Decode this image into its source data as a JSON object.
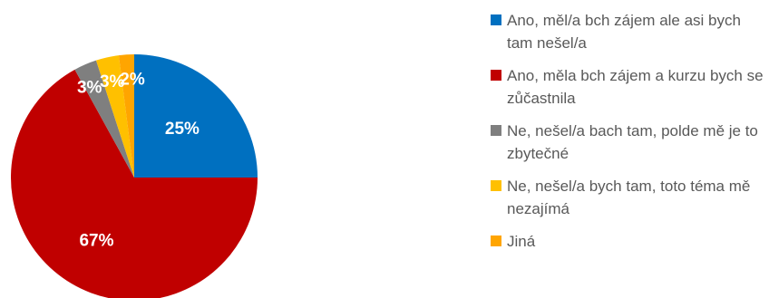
{
  "chart_data": {
    "type": "pie",
    "title": "",
    "slices": [
      {
        "label": "Ano, měl/a bch zájem ale asi bych tam nešel/a",
        "value": 25,
        "display": "25%",
        "color": "#0070C0"
      },
      {
        "label": "Ano, měla bch zájem a kurzu bych se zůčastnila",
        "value": 67,
        "display": "67%",
        "color": "#C00000"
      },
      {
        "label": "Ne, nešel/a bach tam, polde mě je to zbytečné",
        "value": 3,
        "display": "3%",
        "color": "#7F7F7F"
      },
      {
        "label": "Ne, nešel/a bych tam, toto téma mě nezajímá",
        "value": 3,
        "display": "3%",
        "color": "#FFC000"
      },
      {
        "label": "Jiná",
        "value": 2,
        "display": "2%",
        "color": "#FFA500"
      }
    ],
    "legend_position": "right"
  }
}
